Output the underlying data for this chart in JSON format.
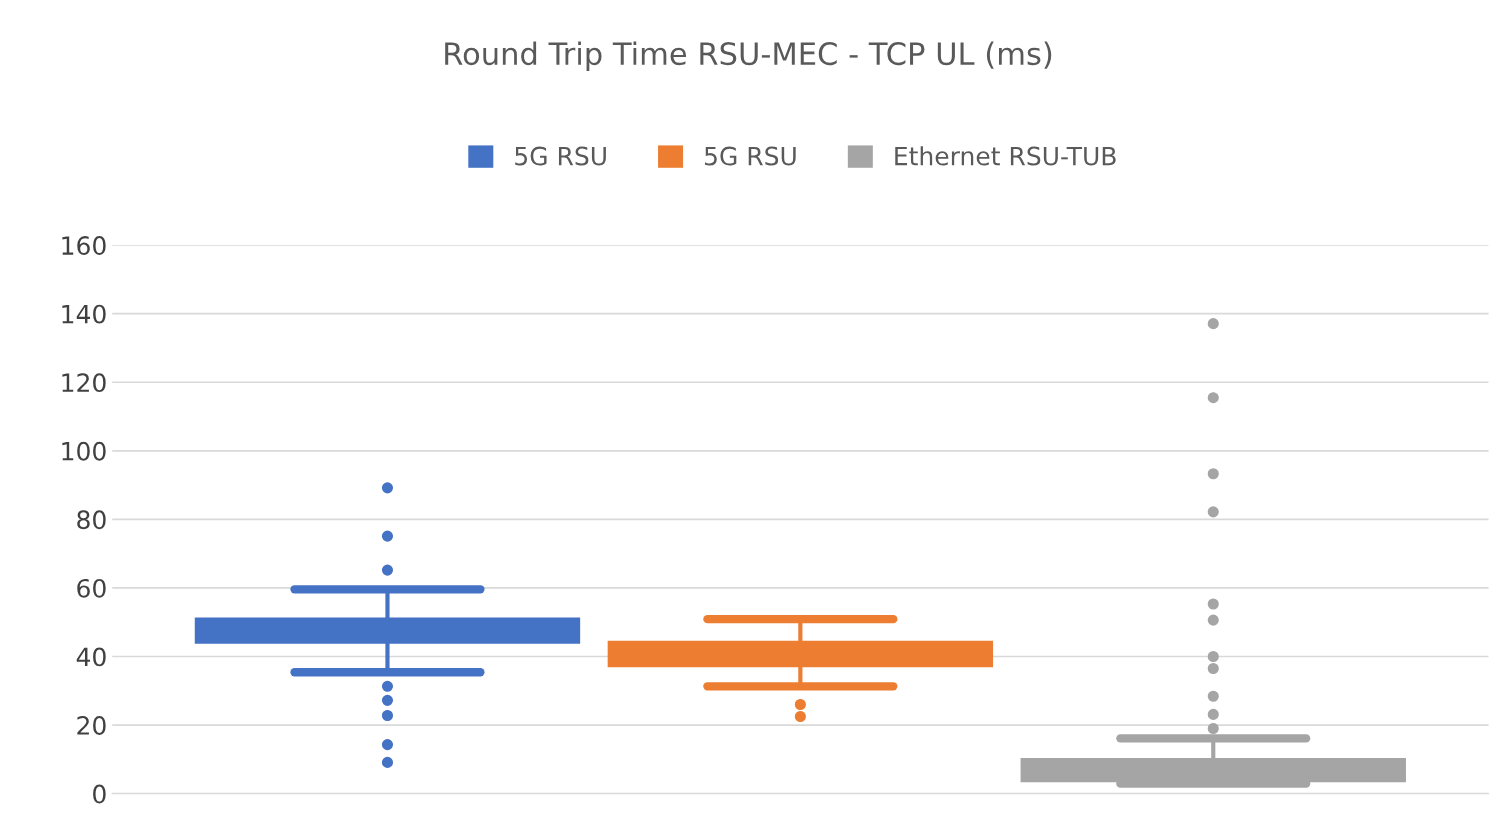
{
  "chart_data": {
    "type": "box",
    "title": "Round Trip Time RSU-MEC - TCP UL (ms)",
    "categories": [
      null
    ],
    "series": [
      {
        "name": "5G RSU",
        "color": "#4472c4",
        "boxes": [
          {
            "low": 35.4,
            "q1": 43.9,
            "median": 47,
            "q3": 51.2,
            "high": 59.6,
            "outliers": [
              89.2,
              75.1,
              65.2,
              31.3,
              27.2,
              22.8,
              14.3,
              9.1
            ]
          }
        ]
      },
      {
        "name": "5G RSU",
        "color": "#ed7d31",
        "boxes": [
          {
            "low": 31.3,
            "q1": 37.1,
            "median": 40,
            "q3": 44.4,
            "high": 50.9,
            "outliers": [
              26,
              22.5
            ]
          }
        ]
      },
      {
        "name": "Ethernet RSU-TUB",
        "color": "#a5a5a5",
        "boxes": [
          {
            "low": 2.9,
            "q1": 3.5,
            "median": 5,
            "q3": 10.2,
            "high": 16.1,
            "outliers": [
              137.1,
              115.5,
              93.3,
              82.2,
              55.3,
              50.6,
              40,
              36.5,
              28.4,
              23.1,
              19
            ]
          }
        ]
      }
    ],
    "ylim": [
      0,
      160
    ],
    "yticks": [
      0,
      20,
      40,
      60,
      80,
      100,
      120,
      140,
      160
    ],
    "grid": "y",
    "legend": "top"
  }
}
